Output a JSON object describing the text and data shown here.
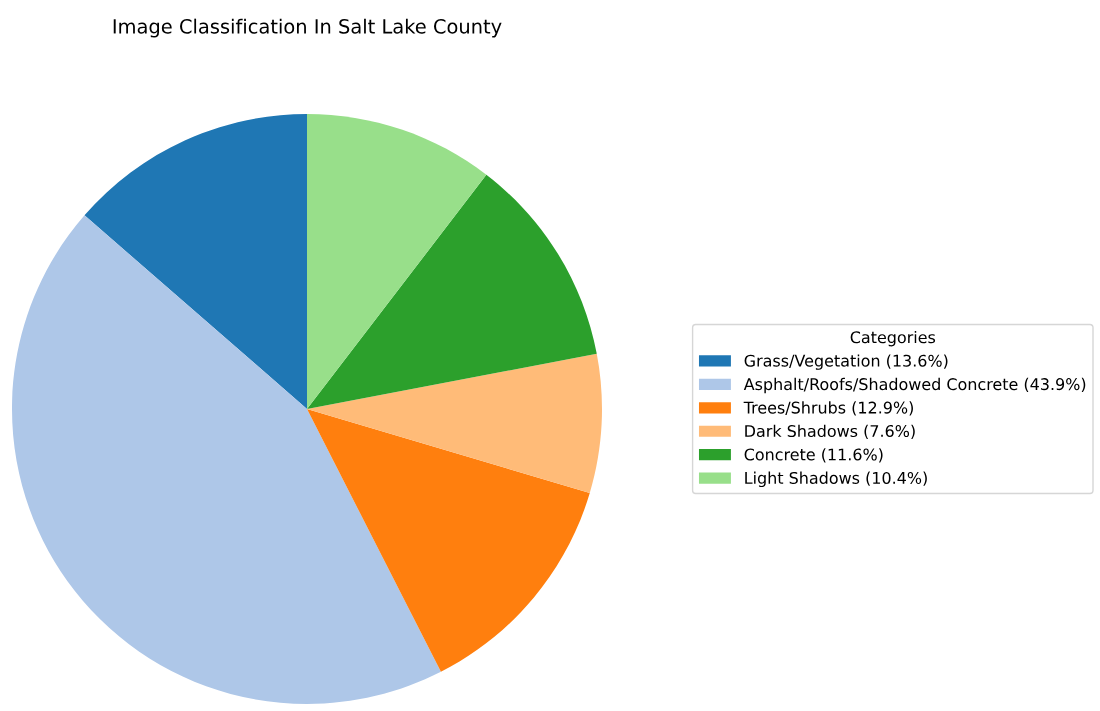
{
  "chart_data": {
    "type": "pie",
    "title": "Image Classification In Salt Lake County",
    "legend_title": "Categories",
    "legend": "right",
    "categories": [
      "Grass/Vegetation (13.6%)",
      "Asphalt/Roofs/Shadowed Concrete (43.9%)",
      "Trees/Shrubs (12.9%)",
      "Dark Shadows (7.6%)",
      "Concrete (11.6%)",
      "Light Shadows (10.4%)"
    ],
    "values": [
      13.6,
      43.9,
      12.9,
      7.6,
      11.6,
      10.4
    ],
    "colors": [
      "#1f77b4",
      "#aec7e8",
      "#ff7f0e",
      "#ffbb78",
      "#2ca02c",
      "#98df8a"
    ]
  }
}
